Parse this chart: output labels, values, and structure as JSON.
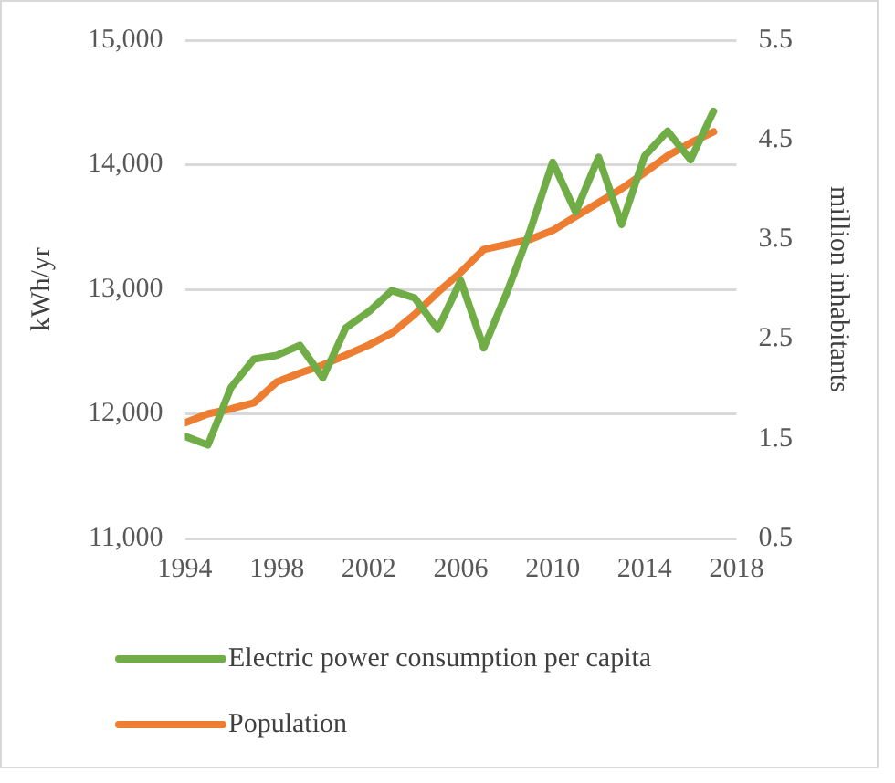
{
  "chart_data": {
    "type": "line",
    "x": [
      1994,
      1995,
      1996,
      1997,
      1998,
      1999,
      2000,
      2001,
      2002,
      2003,
      2004,
      2005,
      2006,
      2007,
      2008,
      2009,
      2010,
      2011,
      2012,
      2013,
      2014,
      2015,
      2016,
      2017
    ],
    "series": [
      {
        "name": "Electric power consumption per capita",
        "color": "#70ad47",
        "values": [
          11820,
          11750,
          12210,
          12440,
          12470,
          12550,
          12290,
          12690,
          12820,
          12990,
          12930,
          12680,
          13070,
          12530,
          12970,
          13460,
          14020,
          13620,
          14060,
          13520,
          14070,
          14270,
          14040,
          14430
        ]
      },
      {
        "name": "Population",
        "color": "#ed7d31",
        "axis": "y2",
        "values": [
          1.66,
          1.75,
          1.8,
          1.86,
          2.07,
          2.16,
          2.24,
          2.34,
          2.44,
          2.56,
          2.75,
          2.97,
          3.17,
          3.4,
          3.45,
          3.5,
          3.59,
          3.73,
          3.87,
          4.01,
          4.17,
          4.34,
          4.47,
          4.58
        ]
      }
    ],
    "xlim": [
      1994,
      2018
    ],
    "xticks": [
      1994,
      1998,
      2002,
      2006,
      2010,
      2014,
      2018
    ],
    "ylim": [
      11000,
      15000
    ],
    "yticks": [
      {
        "value": 11000,
        "label": "11,000"
      },
      {
        "value": 12000,
        "label": "12,000"
      },
      {
        "value": 13000,
        "label": "13,000"
      },
      {
        "value": 14000,
        "label": "14,000"
      },
      {
        "value": 15000,
        "label": "15,000"
      }
    ],
    "y2lim": [
      0.5,
      5.5
    ],
    "y2ticks": [
      0.5,
      1.5,
      2.5,
      3.5,
      4.5,
      5.5
    ],
    "ylabel": "kWh/yr",
    "y2label": "million inhabitants",
    "grid": "y",
    "legend": "bottom",
    "marker": "none",
    "line_style": "solid"
  }
}
